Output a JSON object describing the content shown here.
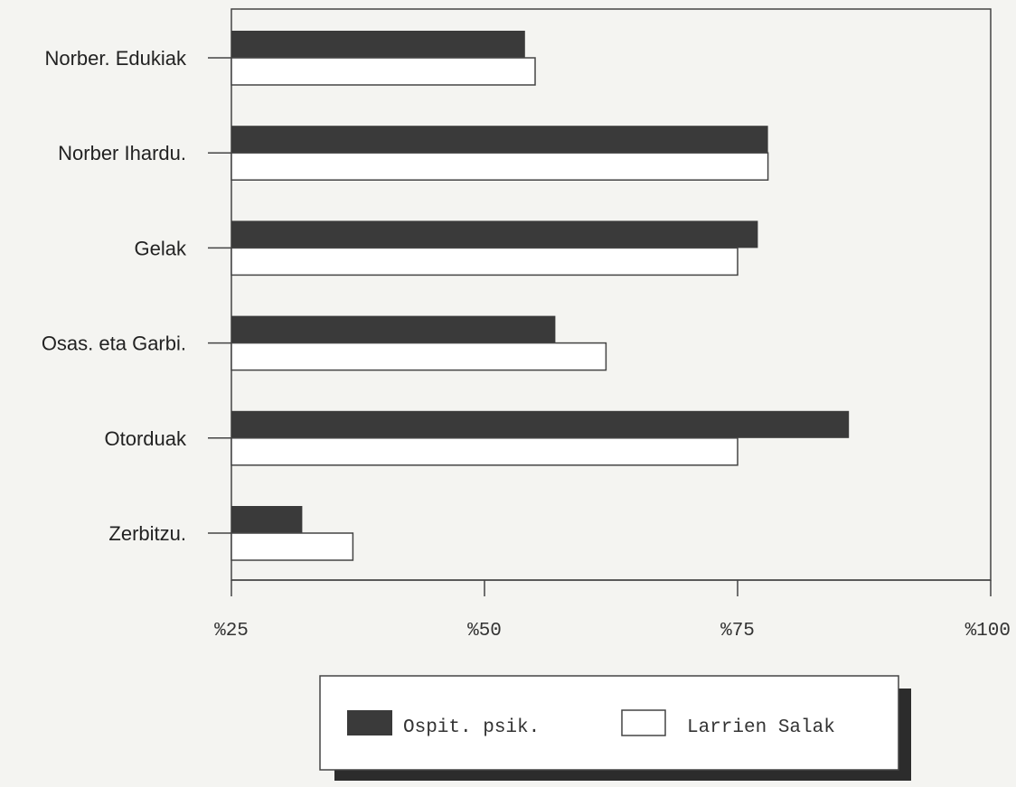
{
  "chart_data": {
    "type": "bar",
    "orientation": "horizontal",
    "title": "",
    "xlabel": "",
    "ylabel": "",
    "categories": [
      "Norber. Edukiak",
      "Norber Ihardu.",
      "Gelak",
      "Osas. eta Garbi.",
      "Otorduak",
      "Zerbitzu."
    ],
    "series": [
      {
        "name": "Ospit. psik.",
        "values": [
          54,
          78,
          77,
          57,
          86,
          32
        ],
        "color": "#3a3a3a"
      },
      {
        "name": "Larrien Salak",
        "values": [
          55,
          78,
          75,
          62,
          75,
          37
        ],
        "color": "#ffffff"
      }
    ],
    "xlim": [
      25,
      100
    ],
    "xticks": [
      {
        "value": 25,
        "label": "%25"
      },
      {
        "value": 50,
        "label": "%50"
      },
      {
        "value": 75,
        "label": "%75"
      },
      {
        "value": 100,
        "label": "%100"
      }
    ],
    "grid": false,
    "legend_position": "bottom"
  }
}
